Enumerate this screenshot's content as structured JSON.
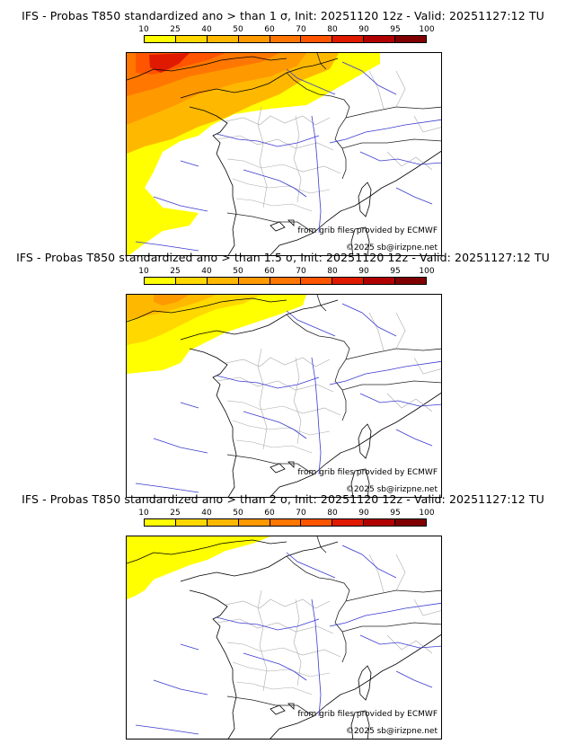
{
  "colorbar": {
    "ticks": [
      "10",
      "25",
      "40",
      "50",
      "60",
      "70",
      "80",
      "90",
      "95",
      "100"
    ],
    "colors": [
      "#ffff00",
      "#ffd800",
      "#ffb800",
      "#ff9900",
      "#ff7700",
      "#ff5500",
      "#e01a00",
      "#b00000",
      "#800000"
    ]
  },
  "panels": [
    {
      "title": "IFS - Probas T850  standardized ano > than 1 σ, Init: 20251120 12z - Valid: 20251127:12 TU",
      "source": "from grib files provided by ECMWF",
      "copyright": "©2025 sb@irizpne.net"
    },
    {
      "title": "IFS - Probas T850  standardized ano > than 1.5 σ, Init: 20251120 12z - Valid: 20251127:12 TU",
      "source": "from grib files provided by ECMWF",
      "copyright": "©2025 sb@irizpne.net"
    },
    {
      "title": "IFS - Probas T850  standardized ano > than 2 σ, Init: 20251120 12z - Valid: 20251127:12 TU",
      "source": "from grib files provided by ECMWF",
      "copyright": "©2025 sb@irizpne.net"
    }
  ]
}
